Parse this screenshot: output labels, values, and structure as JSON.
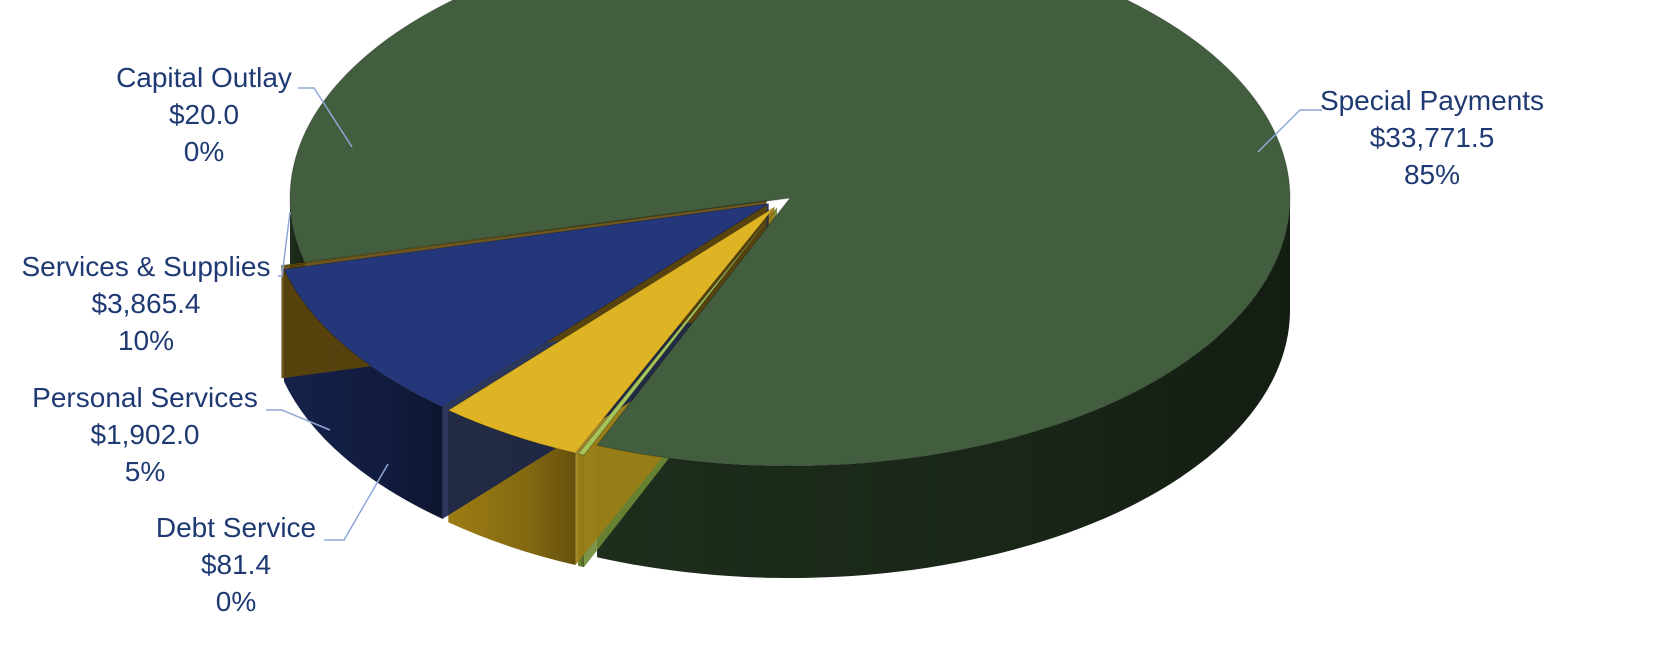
{
  "chart_data": {
    "type": "pie",
    "style": "3d-exploded",
    "slices": [
      {
        "label": "Special Payments",
        "value": 33771.5,
        "value_label": "$33,771.5",
        "pct_label": "85%",
        "color": "#425E3F",
        "side_color": "#1E2D1C"
      },
      {
        "label": "Debt Service",
        "value": 81.4,
        "value_label": "$81.4",
        "pct_label": "0%",
        "color": "#A5C45A",
        "side_color": "#6F8A35"
      },
      {
        "label": "Personal Services",
        "value": 1902.0,
        "value_label": "$1,902.0",
        "pct_label": "5%",
        "color": "#DEB424",
        "side_color": "#9C7C14"
      },
      {
        "label": "Services & Supplies",
        "value": 3865.4,
        "value_label": "$3,865.4",
        "pct_label": "10%",
        "color": "#24377A",
        "side_color": "#15214A"
      },
      {
        "label": "Capital Outlay",
        "value": 20.0,
        "value_label": "$20.0",
        "pct_label": "0%",
        "color": "#8A6A10",
        "side_color": "#5E4608"
      }
    ],
    "label_color": "#1F3A73",
    "leader_color": "#8FA8D8"
  }
}
